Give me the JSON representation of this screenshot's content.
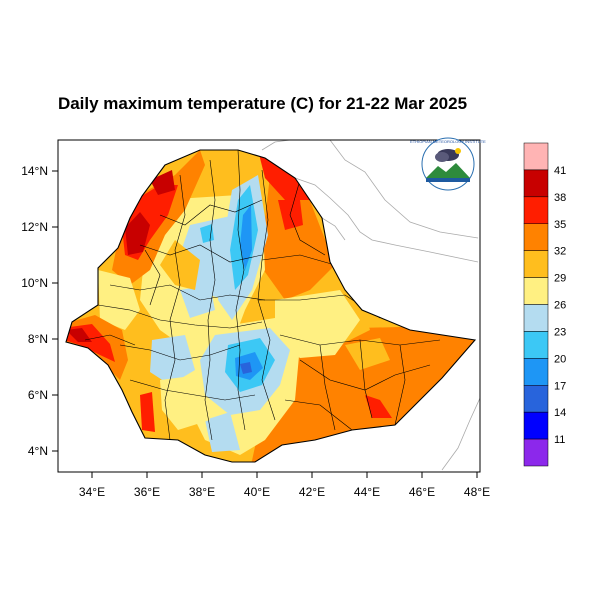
{
  "title": "Daily maximum temperature (C) for 21-22 Mar 2025",
  "x_ticks": [
    "34°E",
    "36°E",
    "38°E",
    "40°E",
    "42°E",
    "44°E",
    "46°E",
    "48°E"
  ],
  "y_ticks": [
    "14°N",
    "12°N",
    "10°N",
    "8°N",
    "6°N",
    "4°N"
  ],
  "colorbar": {
    "colors": [
      "#ffb4b4",
      "#c80000",
      "#ff1e00",
      "#ff8200",
      "#ffbe1e",
      "#fff082",
      "#b4dcf0",
      "#3cc8f5",
      "#1e96f5",
      "#2864dc",
      "#0000ff",
      "#8c28eb"
    ],
    "labels": [
      "41",
      "38",
      "35",
      "32",
      "29",
      "26",
      "23",
      "20",
      "17",
      "14",
      "11"
    ]
  },
  "logo": {
    "text": "ETHIOPIAN METEOROLOGY INSTITUTE"
  }
}
